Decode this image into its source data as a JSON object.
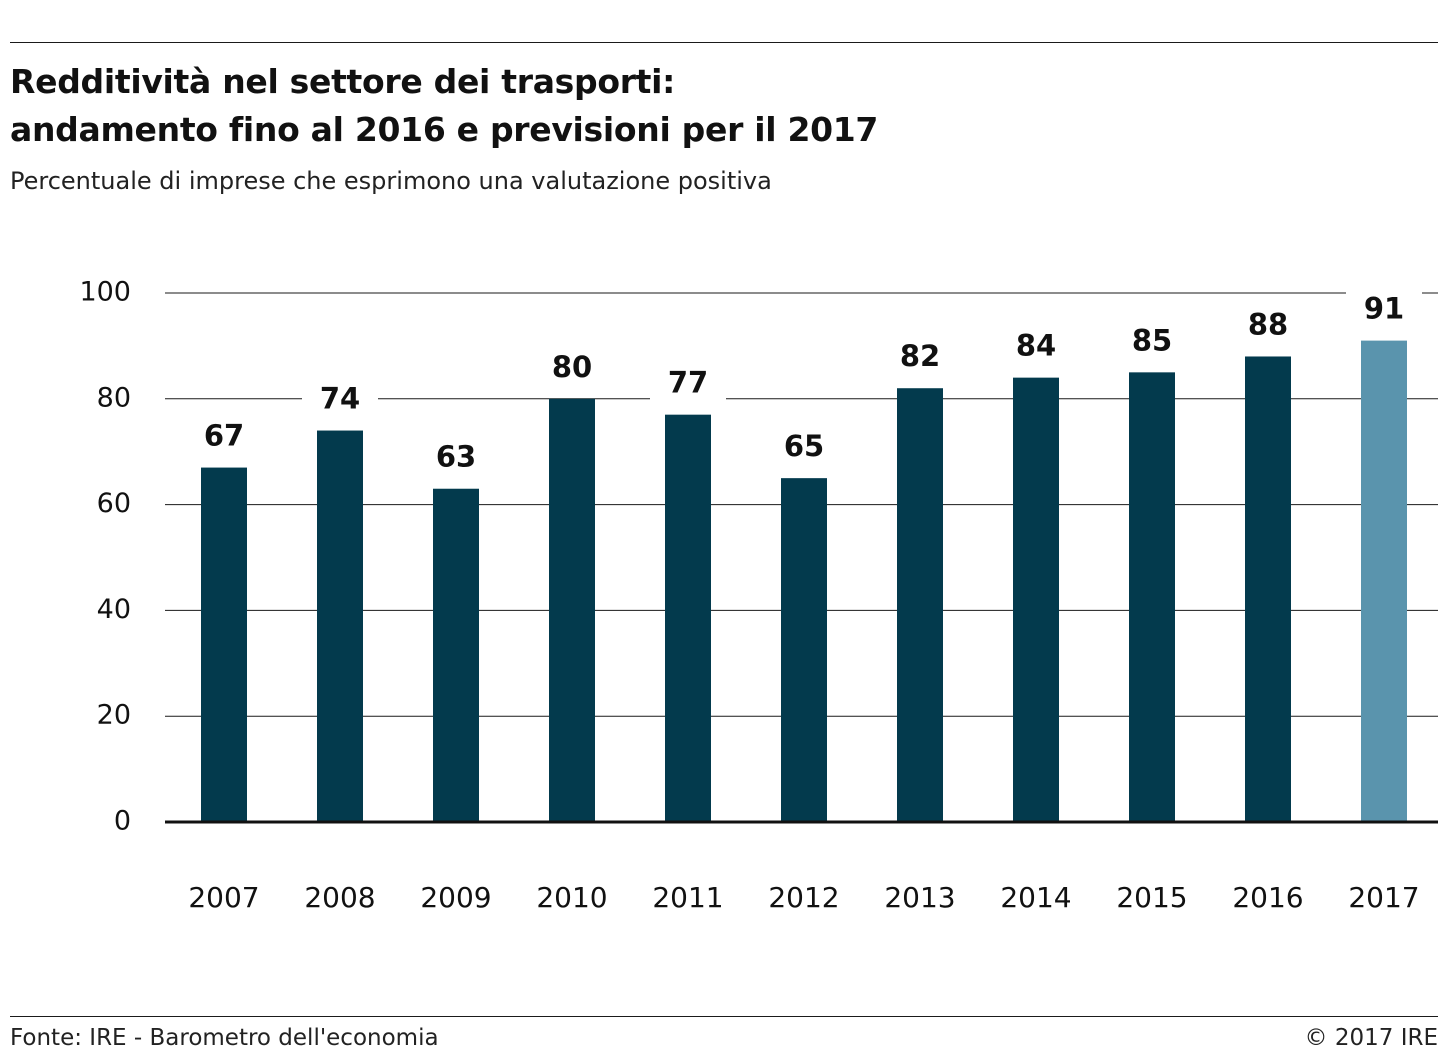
{
  "header": {
    "title_line1": "Redditività nel settore dei trasporti:",
    "title_line2": "andamento fino al 2016 e previsioni per il 2017",
    "subtitle": "Percentuale di imprese che esprimono una valutazione positiva"
  },
  "footer": {
    "source": "Fonte: IRE - Barometro dell'economia",
    "copyright": "© 2017 IRE"
  },
  "colors": {
    "actual_bar": "#033a4d",
    "forecast_bar": "#5a94ad",
    "gridline": "#1a1a1a",
    "baseline": "#111111"
  },
  "chart_data": {
    "type": "bar",
    "title": "Redditività nel settore dei trasporti: andamento fino al 2016 e previsioni per il 2017",
    "subtitle": "Percentuale di imprese che esprimono una valutazione positiva",
    "categories": [
      "2007",
      "2008",
      "2009",
      "2010",
      "2011",
      "2012",
      "2013",
      "2014",
      "2015",
      "2016",
      "2017"
    ],
    "values": [
      67,
      74,
      63,
      80,
      77,
      65,
      82,
      84,
      85,
      88,
      91
    ],
    "forecast": [
      false,
      false,
      false,
      false,
      false,
      false,
      false,
      false,
      false,
      false,
      true
    ],
    "value_labels": [
      "67",
      "74",
      "63",
      "80",
      "77",
      "65",
      "82",
      "84",
      "85",
      "88",
      "91"
    ],
    "ylim": [
      0,
      100
    ],
    "yticks": [
      0,
      20,
      40,
      60,
      80,
      100
    ],
    "ytick_labels": [
      "0",
      "20",
      "40",
      "60",
      "80",
      "100"
    ],
    "xlabel": "",
    "ylabel": "",
    "grid": true
  }
}
